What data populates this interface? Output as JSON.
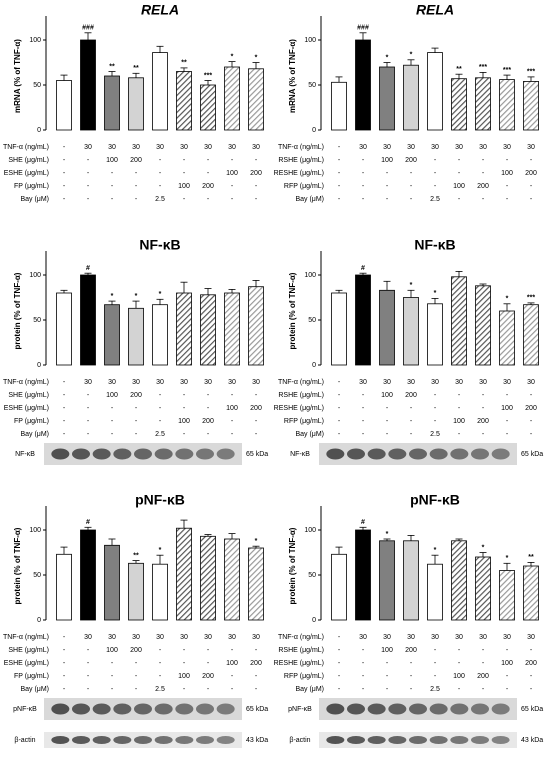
{
  "chart_data": [
    {
      "type": "bar",
      "title": "RELA",
      "y_label": "mRNA (% of TNF-α)",
      "ylim": [
        0,
        120
      ],
      "yticks": [
        0,
        50,
        100
      ],
      "values": [
        55,
        100,
        60,
        58,
        86,
        65,
        50,
        70,
        68
      ],
      "errors": [
        6,
        8,
        5,
        5,
        7,
        4,
        5,
        6,
        7
      ],
      "annotations": [
        null,
        "###",
        "**",
        "**",
        null,
        "**",
        "***",
        "*",
        "*"
      ],
      "colors": [
        "#ffffff",
        "#000000",
        "#808080",
        "#d3d3d3",
        "#ffffff",
        "#555555",
        "#555555",
        "#999999",
        "#999999"
      ],
      "hatch": [
        false,
        false,
        false,
        false,
        false,
        true,
        true,
        true,
        true
      ],
      "treatments": [
        {
          "label": "TNF-α (ng/mL)",
          "values": [
            "-",
            "30",
            "30",
            "30",
            "30",
            "30",
            "30",
            "30",
            "30"
          ]
        },
        {
          "label": "SHE (μg/mL)",
          "values": [
            "-",
            "-",
            "100",
            "200",
            "-",
            "-",
            "-",
            "-",
            "-"
          ]
        },
        {
          "label": "ESHE (μg/mL)",
          "values": [
            "-",
            "-",
            "-",
            "-",
            "-",
            "-",
            "-",
            "100",
            "200"
          ]
        },
        {
          "label": "FP (μg/mL)",
          "values": [
            "-",
            "-",
            "-",
            "-",
            "-",
            "100",
            "200",
            "-",
            "-"
          ]
        },
        {
          "label": "Bay (μM)",
          "values": [
            "-",
            "-",
            "-",
            "-",
            "2.5",
            "-",
            "-",
            "-",
            "-"
          ]
        }
      ],
      "blots": []
    },
    {
      "type": "bar",
      "title": "RELA",
      "y_label": "mRNA (% of TNF-α)",
      "ylim": [
        0,
        120
      ],
      "yticks": [
        0,
        50,
        100
      ],
      "values": [
        53,
        100,
        70,
        72,
        86,
        57,
        58,
        56,
        54
      ],
      "errors": [
        6,
        8,
        5,
        6,
        5,
        5,
        6,
        5,
        5
      ],
      "annotations": [
        null,
        "###",
        "*",
        "*",
        null,
        "**",
        "***",
        "***",
        "***"
      ],
      "colors": [
        "#ffffff",
        "#000000",
        "#808080",
        "#d3d3d3",
        "#ffffff",
        "#555555",
        "#555555",
        "#999999",
        "#999999"
      ],
      "hatch": [
        false,
        false,
        false,
        false,
        false,
        true,
        true,
        true,
        true
      ],
      "treatments": [
        {
          "label": "TNF-α (ng/mL)",
          "values": [
            "-",
            "30",
            "30",
            "30",
            "30",
            "30",
            "30",
            "30",
            "30"
          ]
        },
        {
          "label": "RSHE (μg/mL)",
          "values": [
            "-",
            "-",
            "100",
            "200",
            "-",
            "-",
            "-",
            "-",
            "-"
          ]
        },
        {
          "label": "RESHE (μg/mL)",
          "values": [
            "-",
            "-",
            "-",
            "-",
            "-",
            "-",
            "-",
            "100",
            "200"
          ]
        },
        {
          "label": "RFP (μg/mL)",
          "values": [
            "-",
            "-",
            "-",
            "-",
            "-",
            "100",
            "200",
            "-",
            "-"
          ]
        },
        {
          "label": "Bay (μM)",
          "values": [
            "-",
            "-",
            "-",
            "-",
            "2.5",
            "-",
            "-",
            "-",
            "-"
          ]
        }
      ],
      "blots": []
    },
    {
      "type": "bar",
      "title": "NF-κB",
      "y_label": "protein (% of TNF-α)",
      "ylim": [
        0,
        120
      ],
      "yticks": [
        0,
        50,
        100
      ],
      "values": [
        80,
        100,
        67,
        63,
        67,
        80,
        78,
        80,
        87
      ],
      "errors": [
        3,
        2,
        4,
        8,
        6,
        12,
        7,
        4,
        7
      ],
      "annotations": [
        null,
        "#",
        "*",
        "*",
        "*",
        null,
        null,
        null,
        null
      ],
      "colors": [
        "#ffffff",
        "#000000",
        "#808080",
        "#d3d3d3",
        "#ffffff",
        "#555555",
        "#555555",
        "#999999",
        "#999999"
      ],
      "hatch": [
        false,
        false,
        false,
        false,
        false,
        true,
        true,
        true,
        true
      ],
      "treatments": [
        {
          "label": "TNF-α (ng/mL)",
          "values": [
            "-",
            "30",
            "30",
            "30",
            "30",
            "30",
            "30",
            "30",
            "30"
          ]
        },
        {
          "label": "SHE (μg/mL)",
          "values": [
            "-",
            "-",
            "100",
            "200",
            "-",
            "-",
            "-",
            "-",
            "-"
          ]
        },
        {
          "label": "ESHE (μg/mL)",
          "values": [
            "-",
            "-",
            "-",
            "-",
            "-",
            "-",
            "-",
            "100",
            "200"
          ]
        },
        {
          "label": "FP (μg/mL)",
          "values": [
            "-",
            "-",
            "-",
            "-",
            "-",
            "100",
            "200",
            "-",
            "-"
          ]
        },
        {
          "label": "Bay (μM)",
          "values": [
            "-",
            "-",
            "-",
            "-",
            "2.5",
            "-",
            "-",
            "-",
            "-"
          ]
        }
      ],
      "blots": [
        {
          "label": "NF-κB",
          "size": "65 kDa"
        }
      ]
    },
    {
      "type": "bar",
      "title": "NF-κB",
      "y_label": "protein (% of TNF-α)",
      "ylim": [
        0,
        120
      ],
      "yticks": [
        0,
        50,
        100
      ],
      "values": [
        80,
        100,
        83,
        75,
        68,
        98,
        88,
        60,
        67
      ],
      "errors": [
        3,
        2,
        10,
        8,
        6,
        6,
        2,
        8,
        2
      ],
      "annotations": [
        null,
        "#",
        null,
        "*",
        "*",
        null,
        null,
        "*",
        "***"
      ],
      "colors": [
        "#ffffff",
        "#000000",
        "#808080",
        "#d3d3d3",
        "#ffffff",
        "#555555",
        "#555555",
        "#999999",
        "#999999"
      ],
      "hatch": [
        false,
        false,
        false,
        false,
        false,
        true,
        true,
        true,
        true
      ],
      "treatments": [
        {
          "label": "TNF-α (ng/mL)",
          "values": [
            "-",
            "30",
            "30",
            "30",
            "30",
            "30",
            "30",
            "30",
            "30"
          ]
        },
        {
          "label": "RSHE (μg/mL)",
          "values": [
            "-",
            "-",
            "100",
            "200",
            "-",
            "-",
            "-",
            "-",
            "-"
          ]
        },
        {
          "label": "RESHE (μg/mL)",
          "values": [
            "-",
            "-",
            "-",
            "-",
            "-",
            "-",
            "-",
            "100",
            "200"
          ]
        },
        {
          "label": "RFP (μg/mL)",
          "values": [
            "-",
            "-",
            "-",
            "-",
            "-",
            "100",
            "200",
            "-",
            "-"
          ]
        },
        {
          "label": "Bay (μM)",
          "values": [
            "-",
            "-",
            "-",
            "-",
            "2.5",
            "-",
            "-",
            "-",
            "-"
          ]
        }
      ],
      "blots": [
        {
          "label": "NF-κB",
          "size": "65 kDa"
        }
      ]
    },
    {
      "type": "bar",
      "title": "pNF-κB",
      "y_label": "protein (% of TNF-α)",
      "ylim": [
        0,
        120
      ],
      "yticks": [
        0,
        50,
        100
      ],
      "values": [
        73,
        100,
        83,
        63,
        62,
        102,
        93,
        90,
        80
      ],
      "errors": [
        8,
        3,
        7,
        3,
        10,
        9,
        2,
        6,
        2
      ],
      "annotations": [
        null,
        "#",
        null,
        "**",
        "*",
        null,
        null,
        null,
        "*"
      ],
      "colors": [
        "#ffffff",
        "#000000",
        "#808080",
        "#d3d3d3",
        "#ffffff",
        "#555555",
        "#555555",
        "#999999",
        "#999999"
      ],
      "hatch": [
        false,
        false,
        false,
        false,
        false,
        true,
        true,
        true,
        true
      ],
      "treatments": [
        {
          "label": "TNF-α (ng/mL)",
          "values": [
            "-",
            "30",
            "30",
            "30",
            "30",
            "30",
            "30",
            "30",
            "30"
          ]
        },
        {
          "label": "SHE (μg/mL)",
          "values": [
            "-",
            "-",
            "100",
            "200",
            "-",
            "-",
            "-",
            "-",
            "-"
          ]
        },
        {
          "label": "ESHE (μg/mL)",
          "values": [
            "-",
            "-",
            "-",
            "-",
            "-",
            "-",
            "-",
            "100",
            "200"
          ]
        },
        {
          "label": "FP (μg/mL)",
          "values": [
            "-",
            "-",
            "-",
            "-",
            "-",
            "100",
            "200",
            "-",
            "-"
          ]
        },
        {
          "label": "Bay (μM)",
          "values": [
            "-",
            "-",
            "-",
            "-",
            "2.5",
            "-",
            "-",
            "-",
            "-"
          ]
        }
      ],
      "blots": [
        {
          "label": "pNF-κB",
          "size": "65 kDa"
        },
        {
          "label": "β-actin",
          "size": "43 kDa"
        }
      ]
    },
    {
      "type": "bar",
      "title": "pNF-κB",
      "y_label": "protein (% of TNF-α)",
      "ylim": [
        0,
        120
      ],
      "yticks": [
        0,
        50,
        100
      ],
      "values": [
        73,
        100,
        88,
        88,
        62,
        88,
        70,
        55,
        60
      ],
      "errors": [
        8,
        3,
        2,
        6,
        10,
        2,
        5,
        8,
        4
      ],
      "annotations": [
        null,
        "#",
        "*",
        null,
        "*",
        null,
        "*",
        "*",
        "**"
      ],
      "colors": [
        "#ffffff",
        "#000000",
        "#808080",
        "#d3d3d3",
        "#ffffff",
        "#555555",
        "#555555",
        "#999999",
        "#999999"
      ],
      "hatch": [
        false,
        false,
        false,
        false,
        false,
        true,
        true,
        true,
        true
      ],
      "treatments": [
        {
          "label": "TNF-α (ng/mL)",
          "values": [
            "-",
            "30",
            "30",
            "30",
            "30",
            "30",
            "30",
            "30",
            "30"
          ]
        },
        {
          "label": "RSHE (μg/mL)",
          "values": [
            "-",
            "-",
            "100",
            "200",
            "-",
            "-",
            "-",
            "-",
            "-"
          ]
        },
        {
          "label": "RESHE (μg/mL)",
          "values": [
            "-",
            "-",
            "-",
            "-",
            "-",
            "-",
            "-",
            "100",
            "200"
          ]
        },
        {
          "label": "RFP (μg/mL)",
          "values": [
            "-",
            "-",
            "-",
            "-",
            "-",
            "100",
            "200",
            "-",
            "-"
          ]
        },
        {
          "label": "Bay (μM)",
          "values": [
            "-",
            "-",
            "-",
            "-",
            "2.5",
            "-",
            "-",
            "-",
            "-"
          ]
        }
      ],
      "blots": [
        {
          "label": "pNF-κB",
          "size": "65 kDa"
        },
        {
          "label": "β-actin",
          "size": "43 kDa"
        }
      ]
    }
  ]
}
